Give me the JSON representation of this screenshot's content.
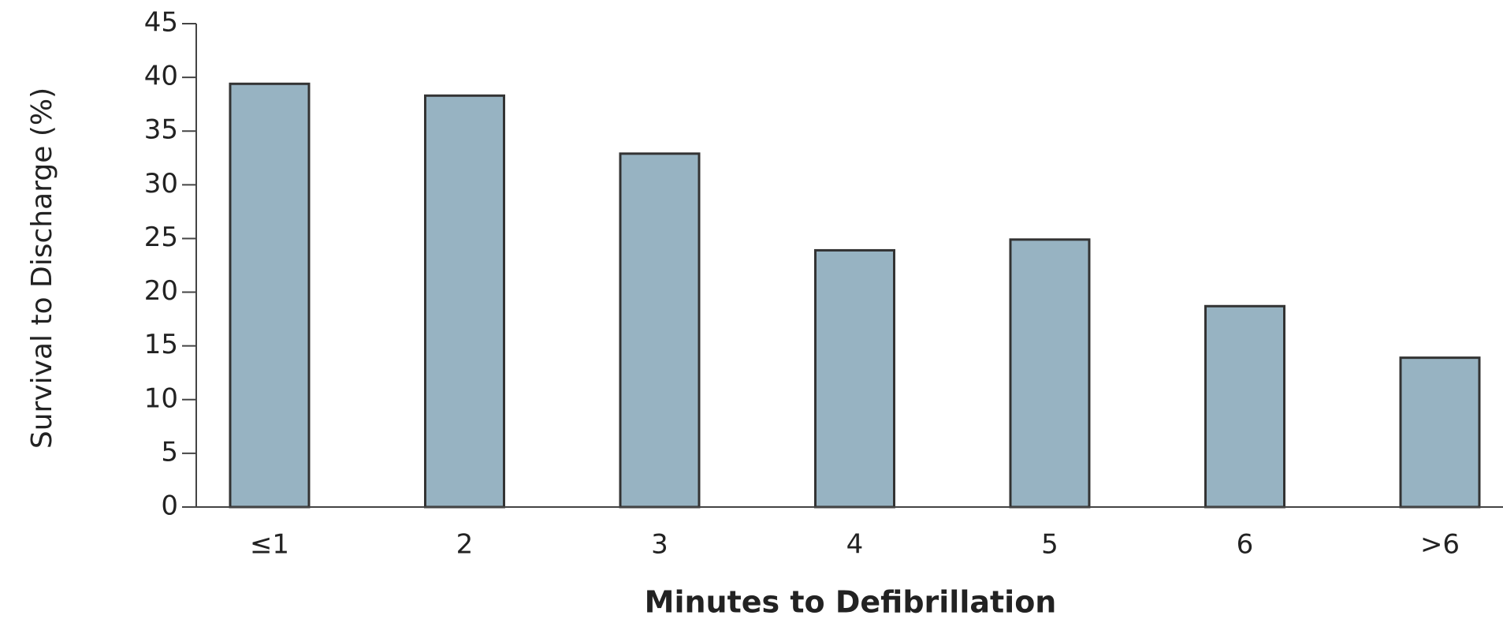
{
  "chart_data": {
    "type": "bar",
    "x_label": "Minutes to Defibrillation",
    "y_label": "Survival to Discharge (%)",
    "categories": [
      "≤1",
      "2",
      "3",
      "4",
      "5",
      "6",
      ">6"
    ],
    "values": [
      39.4,
      38.3,
      32.9,
      23.9,
      24.9,
      18.7,
      13.9
    ],
    "color": "#97b3c2",
    "ylim": [
      0,
      45
    ],
    "yticks": [
      0,
      5,
      10,
      15,
      20,
      25,
      30,
      35,
      40,
      45
    ],
    "grid": false
  }
}
